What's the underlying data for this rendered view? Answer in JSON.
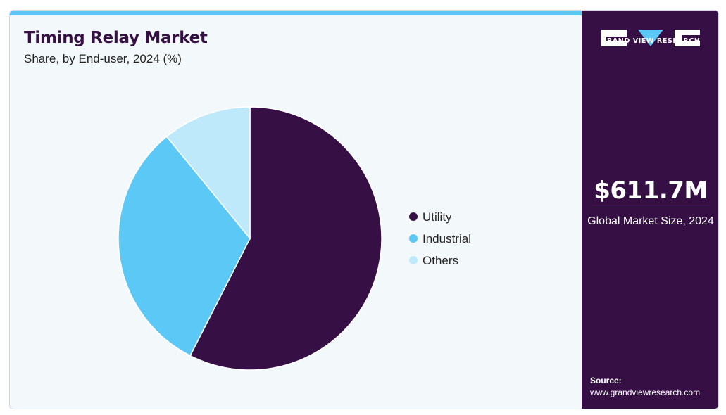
{
  "header": {
    "title": "Timing Relay Market",
    "subtitle": "Share, by End-user, 2024 (%)"
  },
  "chart_data": {
    "type": "pie",
    "title": "Timing Relay Market",
    "subtitle": "Share, by End-user, 2024 (%)",
    "legend_position": "right",
    "slices": [
      {
        "name": "Utility",
        "value": 57.5,
        "color": "#360f45"
      },
      {
        "name": "Industrial",
        "value": 31.6,
        "color": "#5bc8f5"
      },
      {
        "name": "Others",
        "value": 10.9,
        "color": "#bde9fb"
      }
    ]
  },
  "sidebar": {
    "brand": "GRAND VIEW RESEARCH",
    "market_size": "$611.7M",
    "market_size_label": "Global Market Size, 2024",
    "source_label": "Source:",
    "source_url": "www.grandviewresearch.com"
  },
  "colors": {
    "brand_dark": "#360f45",
    "accent": "#5bc8f5",
    "accent_light": "#bde9fb"
  }
}
